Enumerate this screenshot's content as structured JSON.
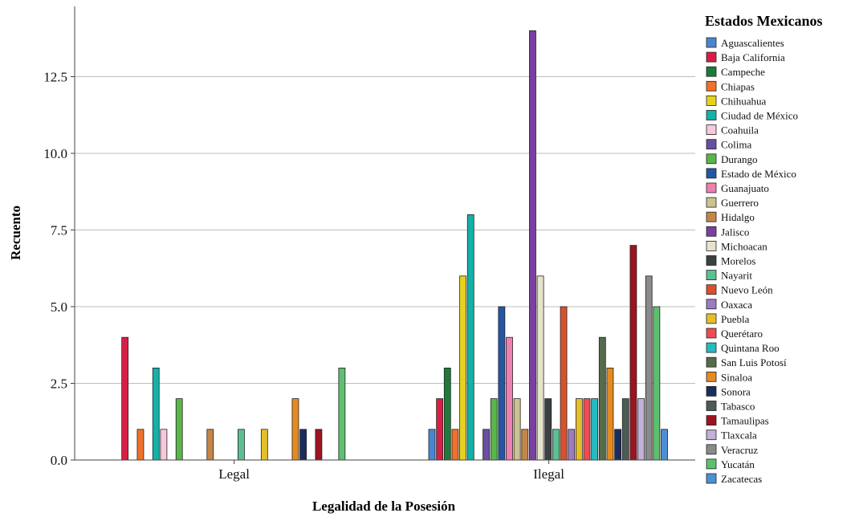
{
  "chart_data": {
    "type": "bar",
    "xlabel": "Legalidad de la Posesión",
    "ylabel": "Recuento",
    "legend_title": "Estados Mexicanos",
    "legend_position": "right",
    "ylim": [
      0,
      14.6
    ],
    "yticks": [
      "0.0",
      "2.5",
      "5.0",
      "7.5",
      "10.0",
      "12.5"
    ],
    "grid": true,
    "categories": [
      "Legal",
      "Ilegal"
    ],
    "series": [
      {
        "name": "Aguascalientes",
        "color": "#4a86cf",
        "values": [
          0,
          1
        ]
      },
      {
        "name": "Baja California",
        "color": "#d81e46",
        "values": [
          4,
          2
        ]
      },
      {
        "name": "Campeche",
        "color": "#1f7a3a",
        "values": [
          0,
          3
        ]
      },
      {
        "name": "Chiapas",
        "color": "#f0712a",
        "values": [
          1,
          1
        ]
      },
      {
        "name": "Chihuahua",
        "color": "#e6d21e",
        "values": [
          0,
          6
        ]
      },
      {
        "name": "Ciudad de México",
        "color": "#12b2a8",
        "values": [
          3,
          8
        ]
      },
      {
        "name": "Coahuila",
        "color": "#f8c8dc",
        "values": [
          1,
          0
        ]
      },
      {
        "name": "Colima",
        "color": "#6a4fa0",
        "values": [
          0,
          1
        ]
      },
      {
        "name": "Durango",
        "color": "#5ab54b",
        "values": [
          2,
          2
        ]
      },
      {
        "name": "Estado de México",
        "color": "#2456a4",
        "values": [
          0,
          5
        ]
      },
      {
        "name": "Guanajuato",
        "color": "#ef7fb0",
        "values": [
          0,
          4
        ]
      },
      {
        "name": "Guerrero",
        "color": "#cbc38f",
        "values": [
          0,
          2
        ]
      },
      {
        "name": "Hidalgo",
        "color": "#c48649",
        "values": [
          1,
          1
        ]
      },
      {
        "name": "Jalisco",
        "color": "#7b3fa0",
        "values": [
          0,
          14
        ]
      },
      {
        "name": "Michoacan",
        "color": "#e7e2cc",
        "values": [
          0,
          6
        ]
      },
      {
        "name": "Morelos",
        "color": "#3b4043",
        "values": [
          0,
          2
        ]
      },
      {
        "name": "Nayarit",
        "color": "#5cc093",
        "values": [
          1,
          1
        ]
      },
      {
        "name": "Nuevo León",
        "color": "#d9512c",
        "values": [
          0,
          5
        ]
      },
      {
        "name": "Oaxaca",
        "color": "#9c7bc0",
        "values": [
          0,
          1
        ]
      },
      {
        "name": "Puebla",
        "color": "#e5bf2a",
        "values": [
          1,
          2
        ]
      },
      {
        "name": "Querétaro",
        "color": "#ee4c53",
        "values": [
          0,
          2
        ]
      },
      {
        "name": "Quintana Roo",
        "color": "#24bcc2",
        "values": [
          0,
          2
        ]
      },
      {
        "name": "San Luis Potosí",
        "color": "#566b49",
        "values": [
          0,
          4
        ]
      },
      {
        "name": "Sinaloa",
        "color": "#e48a1f",
        "values": [
          2,
          3
        ]
      },
      {
        "name": "Sonora",
        "color": "#1b2d5e",
        "values": [
          1,
          1
        ]
      },
      {
        "name": "Tabasco",
        "color": "#4d5a56",
        "values": [
          0,
          2
        ]
      },
      {
        "name": "Tamaulipas",
        "color": "#9c1420",
        "values": [
          1,
          7
        ]
      },
      {
        "name": "Tlaxcala",
        "color": "#c2b0d9",
        "values": [
          0,
          2
        ]
      },
      {
        "name": "Veracruz",
        "color": "#8a8a8a",
        "values": [
          0,
          6
        ]
      },
      {
        "name": "Yucatán",
        "color": "#5ebf6e",
        "values": [
          3,
          5
        ]
      },
      {
        "name": "Zacatecas",
        "color": "#4d8fd3",
        "values": [
          0,
          1
        ]
      }
    ]
  }
}
